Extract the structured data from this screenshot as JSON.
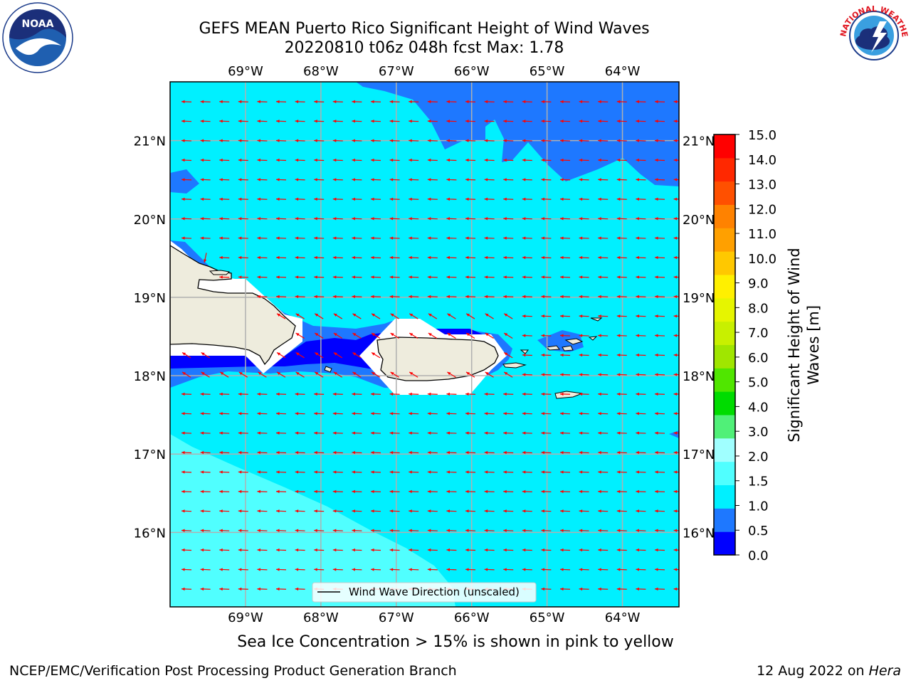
{
  "title": {
    "line1": "GEFS MEAN Puerto Rico Significant Height of Wind Waves",
    "line2": "20220810 t06z 048h fcst   Max: 1.78"
  },
  "map": {
    "lon_labels": [
      "69°W",
      "68°W",
      "67°W",
      "66°W",
      "65°W",
      "64°W"
    ],
    "lat_labels": [
      "21°N",
      "20°N",
      "19°N",
      "18°N",
      "17°N",
      "16°N"
    ],
    "lon_values": [
      -69,
      -68,
      -67,
      -66,
      -65,
      -64
    ],
    "lat_values": [
      21,
      20,
      19,
      18,
      17,
      16
    ],
    "extent": {
      "lon_min": -70,
      "lon_max": -63.25,
      "lat_min": 15.05,
      "lat_max": 21.75
    },
    "arrow_color": "#ff0000",
    "legend_label": "Wind Wave Direction (unscaled)"
  },
  "colorbar": {
    "label_line1": "Significant Height of Wind",
    "label_line2": "Waves [m]",
    "ticks": [
      "0.0",
      "0.5",
      "1.0",
      "1.5",
      "2.0",
      "3.0",
      "4.0",
      "5.0",
      "6.0",
      "7.0",
      "8.0",
      "9.0",
      "10.0",
      "11.0",
      "12.0",
      "13.0",
      "14.0",
      "15.0"
    ],
    "colors": [
      "#0000ff",
      "#1e78ff",
      "#00f0ff",
      "#50ffff",
      "#a0ffff",
      "#50f078",
      "#00dc00",
      "#50e600",
      "#a0e600",
      "#c8f000",
      "#e6f500",
      "#fff000",
      "#ffc800",
      "#ffa000",
      "#ff8200",
      "#ff5000",
      "#ff2800",
      "#ff0000"
    ]
  },
  "note": "Sea Ice Concentration > 15% is shown in pink to yellow",
  "footer": {
    "left": "NCEP/EMC/Verification Post Processing Product Generation Branch",
    "right_prefix": "12 Aug 2022 on ",
    "right_host": "Hera"
  },
  "logos": {
    "noaa_text": "NOAA",
    "nws_text": "NATIONAL WEATHER SERVICE"
  }
}
